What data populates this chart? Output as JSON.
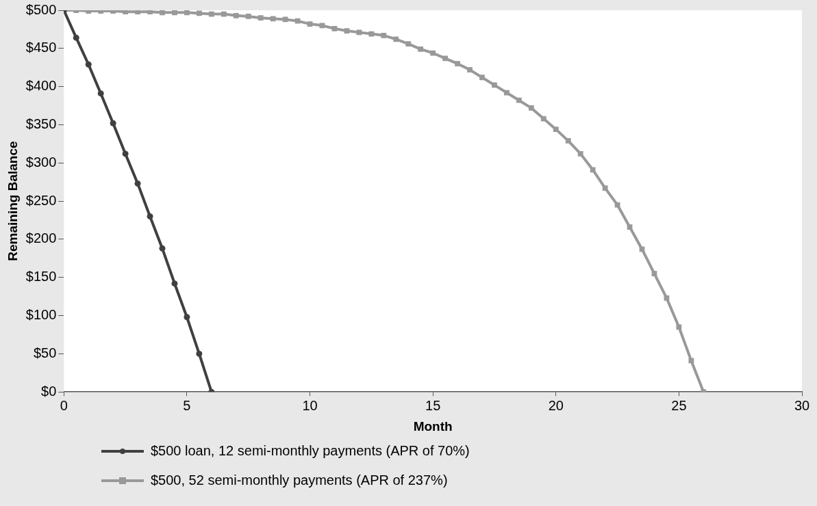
{
  "chart_data": {
    "type": "line",
    "xlabel": "Month",
    "ylabel": "Remaining Balance",
    "xlim": [
      0,
      30
    ],
    "xticks": [
      0,
      5,
      10,
      15,
      20,
      25,
      30
    ],
    "ylim": [
      0,
      500
    ],
    "yticks": [
      {
        "value": 0,
        "label": "$0"
      },
      {
        "value": 50,
        "label": "$50"
      },
      {
        "value": 100,
        "label": "$100"
      },
      {
        "value": 150,
        "label": "$150"
      },
      {
        "value": 200,
        "label": "$200"
      },
      {
        "value": 250,
        "label": "$250"
      },
      {
        "value": 300,
        "label": "$300"
      },
      {
        "value": 350,
        "label": "$350"
      },
      {
        "value": 400,
        "label": "$400"
      },
      {
        "value": 450,
        "label": "$450"
      },
      {
        "value": 500,
        "label": "$500"
      }
    ],
    "grid": false,
    "legend": "bottom",
    "line_style": "solid",
    "series": [
      {
        "name": "$500 loan, 12 semi-monthly payments (APR of 70%)",
        "color": "#404040",
        "marker": "circle",
        "x": [
          0,
          0.5,
          1,
          1.5,
          2,
          2.5,
          3,
          3.5,
          4,
          4.5,
          5,
          5.5,
          6
        ],
        "values": [
          500,
          464,
          429,
          391,
          352,
          312,
          273,
          230,
          188,
          142,
          98,
          50,
          0
        ]
      },
      {
        "name": "$500, 52 semi-monthly payments (APR of 237%)",
        "color": "#999999",
        "marker": "square",
        "x": [
          0,
          0.5,
          1,
          1.5,
          2,
          2.5,
          3,
          3.5,
          4,
          4.5,
          5,
          5.5,
          6,
          6.5,
          7,
          7.5,
          8,
          8.5,
          9,
          9.5,
          10,
          10.5,
          11,
          11.5,
          12,
          12.5,
          13,
          13.5,
          14,
          14.5,
          15,
          15.5,
          16,
          16.5,
          17,
          17.5,
          18,
          18.5,
          19,
          19.5,
          20,
          20.5,
          21,
          21.5,
          22,
          22.5,
          23,
          23.5,
          24,
          24.5,
          25,
          25.5,
          26
        ],
        "values": [
          500,
          500,
          499,
          499,
          499,
          498,
          498,
          498,
          497,
          497,
          497,
          496,
          495,
          495,
          493,
          492,
          490,
          489,
          488,
          486,
          482,
          480,
          476,
          473,
          471,
          469,
          467,
          462,
          456,
          449,
          444,
          437,
          430,
          422,
          412,
          402,
          392,
          382,
          372,
          358,
          344,
          329,
          312,
          291,
          267,
          245,
          216,
          187,
          155,
          123,
          85,
          41,
          0
        ]
      }
    ]
  }
}
